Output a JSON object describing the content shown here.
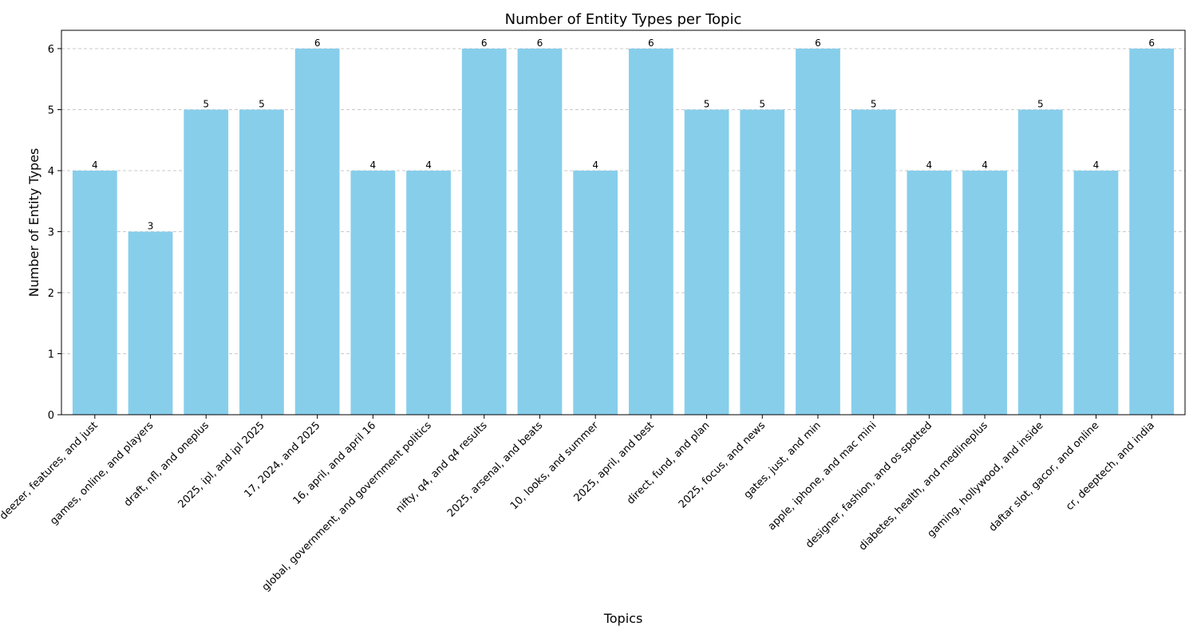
{
  "chart_data": {
    "type": "bar",
    "title": "Number of Entity Types per Topic",
    "xlabel": "Topics",
    "ylabel": "Number of Entity Types",
    "categories": [
      "deezer, features, and just",
      "games, online, and players",
      "draft, nfl, and oneplus",
      "2025, ipl, and ipl 2025",
      "17, 2024, and 2025",
      "16, april, and april 16",
      "global, government, and government politics",
      "nifty, q4, and q4 results",
      "2025, arsenal, and beats",
      "10, looks, and summer",
      "2025, april, and best",
      "direct, fund, and plan",
      "2025, focus, and news",
      "gates, just, and min",
      "apple, iphone, and mac mini",
      "designer, fashion, and os spotted",
      "diabetes, health, and medlineplus",
      "gaming, hollywood, and inside",
      "daftar slot, gacor, and online",
      "cr, deeptech, and india"
    ],
    "values": [
      4,
      3,
      5,
      5,
      6,
      4,
      4,
      6,
      6,
      4,
      6,
      5,
      5,
      6,
      5,
      4,
      4,
      5,
      4,
      6
    ],
    "ylim": [
      0,
      6.3
    ],
    "yticks": [
      0,
      1,
      2,
      3,
      4,
      5,
      6
    ],
    "grid": "y-dashed",
    "legend": "none",
    "bar_color": "#87CEEB",
    "grid_color": "#c8c8c8"
  }
}
